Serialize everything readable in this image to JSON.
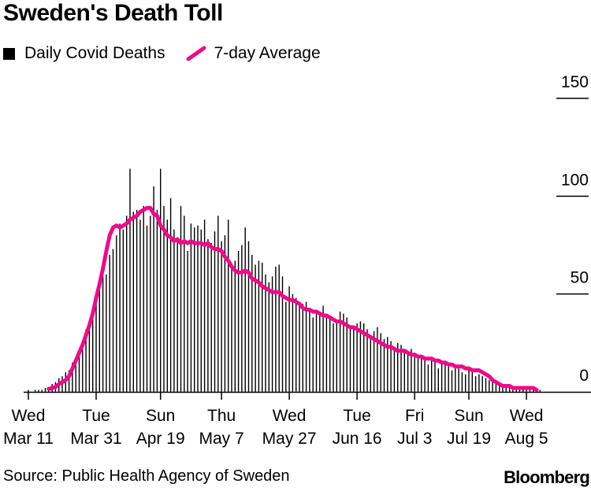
{
  "title": "Sweden's Death Toll",
  "legend": {
    "bars": "Daily Covid Deaths",
    "line": "7-day Average"
  },
  "source": "Source: Public Health Agency of Sweden",
  "brand": "Bloomberg",
  "colors": {
    "bars": "#000000",
    "line": "#f0098b",
    "axis": "#000000"
  },
  "chart_data": {
    "type": "bar",
    "title": "Sweden's Death Toll",
    "xlabel": "",
    "ylabel": "",
    "ylim": [
      0,
      150
    ],
    "yticks": [
      "0",
      "50",
      "100",
      "150"
    ],
    "xticks": [
      {
        "day": 0,
        "line1": "Wed",
        "line2": "Mar 11"
      },
      {
        "day": 20,
        "line1": "Tue",
        "line2": "Mar 31"
      },
      {
        "day": 39,
        "line1": "Sun",
        "line2": "Apr 19"
      },
      {
        "day": 57,
        "line1": "Thu",
        "line2": "May 7"
      },
      {
        "day": 77,
        "line1": "Wed",
        "line2": "May 27"
      },
      {
        "day": 97,
        "line1": "Tue",
        "line2": "Jun 16"
      },
      {
        "day": 114,
        "line1": "Fri",
        "line2": "Jul 3"
      },
      {
        "day": 130,
        "line1": "Sun",
        "line2": "Jul 19"
      },
      {
        "day": 147,
        "line1": "Wed",
        "line2": "Aug 5"
      }
    ],
    "start_date": "Mar 11",
    "series": [
      {
        "name": "Daily Covid Deaths",
        "type": "bar",
        "values": [
          1,
          0,
          1,
          1,
          1,
          2,
          2,
          4,
          5,
          7,
          8,
          10,
          11,
          15,
          17,
          22,
          26,
          32,
          35,
          42,
          48,
          57,
          62,
          60,
          70,
          73,
          80,
          86,
          83,
          90,
          114,
          92,
          93,
          88,
          95,
          85,
          90,
          105,
          93,
          114,
          95,
          88,
          99,
          83,
          78,
          95,
          90,
          72,
          86,
          84,
          85,
          83,
          88,
          78,
          76,
          82,
          90,
          77,
          80,
          88,
          63,
          67,
          72,
          75,
          84,
          77,
          70,
          65,
          67,
          66,
          60,
          56,
          59,
          64,
          65,
          59,
          46,
          54,
          50,
          48,
          44,
          45,
          46,
          41,
          38,
          42,
          40,
          44,
          39,
          38,
          35,
          37,
          41,
          40,
          38,
          33,
          33,
          35,
          36,
          35,
          32,
          29,
          31,
          33,
          30,
          27,
          28,
          26,
          23,
          25,
          24,
          21,
          20,
          22,
          20,
          19,
          18,
          17,
          14,
          17,
          16,
          12,
          15,
          14,
          13,
          11,
          12,
          12,
          10,
          9,
          13,
          10,
          8,
          9,
          8,
          7,
          6,
          7,
          5,
          4,
          3,
          3,
          2,
          3,
          2,
          3,
          2,
          2,
          2,
          1,
          1,
          1,
          0,
          0
        ]
      },
      {
        "name": "7-day Average",
        "type": "line",
        "x_start": 6,
        "values": [
          1.5,
          2,
          2.5,
          4,
          5,
          6,
          8,
          12,
          16,
          20,
          24,
          29,
          34,
          40,
          48,
          55,
          63,
          72,
          80,
          84,
          85,
          84,
          85,
          86,
          88,
          89,
          90,
          92,
          93,
          94,
          94,
          91,
          90,
          85,
          83,
          80,
          79,
          77,
          78,
          76,
          77,
          76,
          77,
          76,
          76,
          76,
          75,
          76,
          74,
          73,
          73,
          72,
          69,
          67,
          64,
          62,
          61,
          61,
          62,
          61,
          58,
          57,
          56,
          54,
          53,
          52,
          51,
          51,
          51,
          49,
          48,
          47,
          47,
          46,
          45,
          43,
          42,
          42,
          41,
          41,
          40,
          39,
          39,
          38,
          37,
          36,
          36,
          35,
          34,
          33,
          33,
          32,
          31,
          30,
          29,
          28,
          27,
          26,
          25,
          24,
          23,
          23,
          22,
          21,
          21,
          21,
          20,
          19,
          19,
          18,
          18,
          17,
          17,
          17,
          16,
          16,
          15,
          15,
          14,
          14,
          13,
          13,
          13,
          12,
          12,
          11,
          11,
          11,
          10,
          9,
          8,
          6,
          5,
          4,
          3,
          3,
          3,
          2,
          2,
          2,
          2,
          2,
          2,
          2,
          1
        ]
      }
    ]
  }
}
